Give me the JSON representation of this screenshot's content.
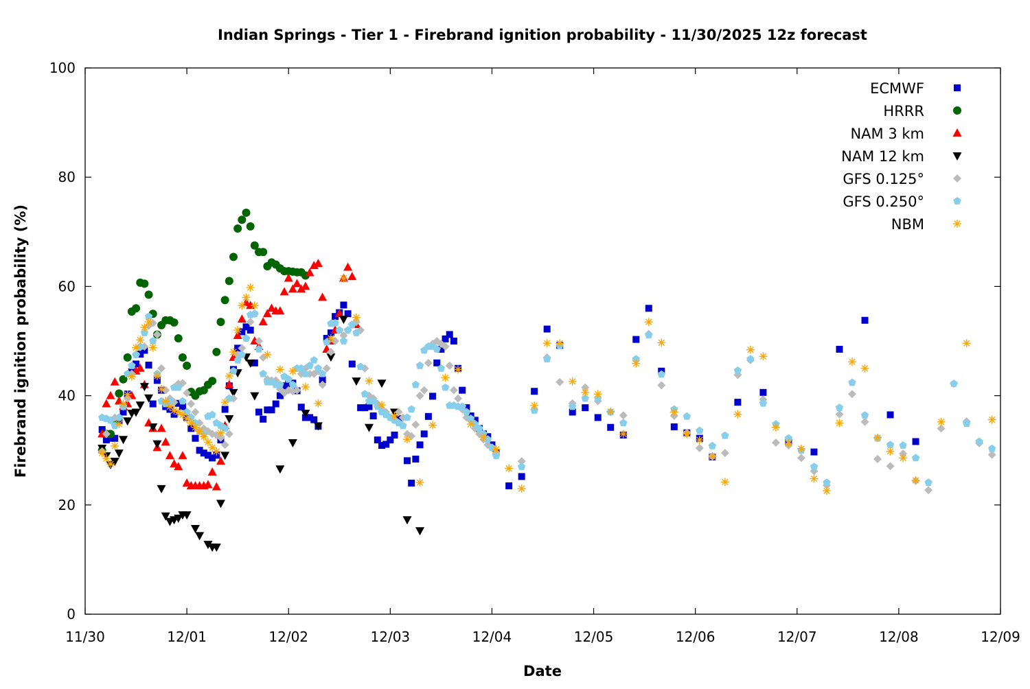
{
  "chart_data": {
    "type": "scatter",
    "title": "Indian Springs - Tier 1 - Firebrand ignition probability - 11/30/2025 12z forecast",
    "xlabel": "Date",
    "ylabel": "Firebrand ignition probability (%)",
    "x_units": "hours since 11/30 00:00",
    "xlim_hours": [
      0,
      216
    ],
    "ylim": [
      0,
      100
    ],
    "yticks": [
      0,
      20,
      40,
      60,
      80,
      100
    ],
    "xtick_labels": [
      "11/30",
      "12/01",
      "12/02",
      "12/03",
      "12/04",
      "12/05",
      "12/06",
      "12/07",
      "12/08",
      "12/09"
    ],
    "grid": false,
    "legend_position": "top-right",
    "series": [
      {
        "name": "ECMWF",
        "marker": "square",
        "color": "#0000cc",
        "segments": [
          {
            "start": 4,
            "step": 1,
            "values": [
              33.8,
              31.9,
              32.2,
              32.2,
              35.5,
              37,
              40.3,
              44.4,
              45.8,
              47.6,
              48.3,
              45.6,
              38.5,
              42.8,
              41,
              38,
              37.5,
              36.6,
              38.6,
              38,
              36,
              34,
              32.2,
              30,
              29.5,
              29.1,
              28.6,
              29.1,
              31.9,
              37.5,
              41.8,
              44.8,
              48.7,
              51.7,
              52.6,
              52,
              46,
              37,
              35.7,
              37.4,
              37.4,
              38.5,
              40,
              41.8,
              42.2,
              42.3,
              40.9,
              37.9,
              36,
              36,
              35.6,
              34.4,
              42.9,
              50.5,
              51.5,
              54.5,
              55.2,
              56.6,
              55,
              45.8,
              null,
              37.8,
              37.8,
              38,
              36.3,
              31.9,
              30.9,
              31.1,
              31.9,
              32.8,
              35.8,
              null,
              28.1,
              24,
              28.4,
              31,
              33,
              36.2,
              39.9,
              46,
              48.5,
              50.4,
              51.2,
              50,
              45,
              41,
              37.8,
              36.3,
              35.5,
              34,
              33,
              32.5,
              31,
              29.5
            ]
          },
          {
            "start": 100,
            "step": 3,
            "values": [
              23.5,
              25.2,
              40.8,
              52.2,
              49.2,
              37,
              37.8,
              36,
              34.2,
              32.8,
              50.3,
              56,
              44.5,
              34.3,
              33.2,
              32.2,
              28.8,
              null,
              38.8,
              null,
              40.6,
              null,
              31.5,
              null,
              29.7,
              null,
              48.5,
              null,
              53.8,
              null,
              36.5,
              null,
              31.6
            ]
          }
        ]
      },
      {
        "name": "HRRR",
        "marker": "circle",
        "color": "#006400",
        "segments": [
          {
            "start": 4,
            "step": 1,
            "values": [
              30,
              33,
              33,
              35.4,
              40.4,
              43,
              47,
              55.4,
              56,
              60.7,
              60.5,
              58.5,
              55,
              51.2,
              52.9,
              53.8,
              53.8,
              53.4,
              50.5,
              47,
              45.5,
              40.7,
              40,
              40.8,
              41,
              42,
              42.7,
              48,
              53.5,
              57.5,
              61,
              65.4,
              70.6,
              72.2,
              73.5,
              71,
              67.5,
              66.3,
              66.3,
              63.7,
              64.4,
              64,
              63.3,
              62.8,
              62.8,
              62.7,
              62.6,
              62.6,
              62
            ]
          }
        ]
      },
      {
        "name": "NAM 3 km",
        "marker": "triangle-up",
        "color": "#ff0000",
        "segments": [
          {
            "start": 4,
            "step": 1,
            "values": [
              33,
              38.5,
              40,
              42.5,
              39,
              38,
              38.5,
              40,
              44.5,
              45,
              42,
              35,
              34,
              30.5,
              34,
              31.5,
              29,
              27.5,
              27,
              29,
              24,
              23.5,
              23.5,
              23.5,
              23.5,
              23.7,
              26,
              23.3,
              28,
              34.5,
              42,
              47,
              51,
              54,
              57,
              56.5,
              50,
              49,
              53.5,
              55,
              56,
              55.5,
              55.5,
              59,
              61.5,
              59.5,
              60.5,
              59.5,
              60,
              62.5,
              63.8,
              64.2,
              58,
              48.5,
              50,
              52,
              55,
              61.5,
              63.5,
              61.8,
              53
            ]
          }
        ]
      },
      {
        "name": "NAM 12 km",
        "marker": "triangle-down",
        "color": "#000000",
        "points": [
          [
            4,
            30.4
          ],
          [
            5,
            29
          ],
          [
            6,
            27.4
          ],
          [
            7,
            28
          ],
          [
            8,
            29.5
          ],
          [
            9,
            32
          ],
          [
            10,
            35.4
          ],
          [
            11,
            36.8
          ],
          [
            12,
            37
          ],
          [
            13,
            38.3
          ],
          [
            14,
            41.7
          ],
          [
            15,
            39.6
          ],
          [
            16,
            34.3
          ],
          [
            17,
            31.2
          ],
          [
            18,
            23
          ],
          [
            19,
            18
          ],
          [
            20,
            17
          ],
          [
            21,
            17.3
          ],
          [
            22,
            17.6
          ],
          [
            23,
            18.2
          ],
          [
            24,
            18.2
          ],
          [
            26,
            15.7
          ],
          [
            27,
            14.4
          ],
          [
            29,
            12.8
          ],
          [
            30,
            12.3
          ],
          [
            31,
            12.3
          ],
          [
            32,
            20.3
          ],
          [
            33,
            29.1
          ],
          [
            34,
            35.8
          ],
          [
            35,
            40.6
          ],
          [
            36,
            44.2
          ],
          [
            38,
            47.1
          ],
          [
            39,
            46
          ],
          [
            40,
            40
          ],
          [
            46,
            26.6
          ],
          [
            49,
            31.4
          ],
          [
            52,
            36.8
          ],
          [
            55,
            34.5
          ],
          [
            58,
            47.1
          ],
          [
            61,
            54
          ],
          [
            64,
            42.7
          ],
          [
            67,
            34.2
          ],
          [
            70,
            42.3
          ],
          [
            73,
            37
          ],
          [
            76,
            17.3
          ],
          [
            79,
            15.3
          ]
        ]
      },
      {
        "name": "GFS 0.125°",
        "marker": "diamond",
        "color": "#bbbbbb",
        "segments": [
          {
            "start": 4,
            "step": 1,
            "values": [
              29.8,
              33,
              35.5,
              36,
              36,
              38,
              39.5,
              44,
              47.5,
              48.9,
              49,
              52.8,
              53.3,
              51.2,
              45,
              41,
              39.5,
              38.8,
              42.2,
              42.3,
              40.5,
              38.5,
              37,
              35,
              34,
              33.5,
              33,
              32.8,
              32.3,
              31,
              33,
              39.5,
              47.5,
              48.7,
              50.5,
              53.5,
              55,
              50,
              47,
              43,
              42.8,
              42.8,
              41.2,
              40.5,
              41,
              40.8,
              41,
              44,
              45,
              44,
              44,
              44.5,
              42,
              45,
              48,
              50,
              52,
              51,
              52,
              53,
              53.5,
              52,
              45,
              40,
              39.5,
              38.5,
              37.5,
              37,
              36,
              35.5,
              37,
              36,
              33,
              32.6,
              34.7,
              40,
              41,
              46,
              49.5,
              50,
              49.5,
              49,
              45.5,
              41,
              39.5,
              37.5,
              36,
              35.5,
              34,
              33,
              32,
              31,
              30.5,
              29.5
            ]
          },
          {
            "start": 103,
            "step": 3,
            "values": [
              28,
              37.5,
              47,
              42.5,
              38.6,
              41.5,
              39,
              37,
              36.4,
              46.5,
              51.3,
              41.9,
              36.3,
              33.2,
              30.4,
              28.9,
              29.5,
              43.8,
              46.5,
              39.3,
              31.4,
              30.9,
              28.6,
              26.2,
              23.6,
              36.6,
              40.3,
              35.2,
              28.4,
              27.1,
              29.4,
              24.4,
              22.7,
              34,
              42.2,
              35.3,
              31.3,
              29.2
            ]
          }
        ]
      },
      {
        "name": "GFS 0.250°",
        "marker": "pentagon",
        "color": "#87ceeb",
        "segments": [
          {
            "start": 4,
            "step": 1,
            "values": [
              36,
              35.8,
              35.5,
              34.5,
              36,
              38,
              44,
              45.5,
              47.5,
              49,
              51.5,
              54.5,
              50,
              44,
              39,
              38.5,
              39,
              41.5,
              41.5,
              39,
              37,
              36,
              35,
              33.5,
              33,
              36.2,
              36.5,
              35,
              34.5,
              34,
              39.5,
              44.5,
              46.5,
              47.5,
              50.5,
              54.8,
              55,
              48.5,
              44,
              42.5,
              42.5,
              42,
              42,
              43.5,
              43,
              42,
              45,
              45,
              44,
              45.5,
              46.5,
              45,
              44,
              49.8,
              53.2,
              53.3,
              52,
              50,
              52,
              53,
              51.5,
              45.3,
              40.3,
              39,
              39,
              38,
              37,
              36.5,
              36,
              35.5,
              35,
              34.5,
              36,
              37.5,
              42,
              45.5,
              48.3,
              49,
              49,
              48.5,
              45,
              41.5,
              38.2,
              38.2,
              38,
              38,
              37,
              35.8,
              34.8,
              34,
              33,
              32,
              30.5,
              29
            ]
          },
          {
            "start": 103,
            "step": 3,
            "values": [
              27,
              37.3,
              46.7,
              49.2,
              38,
              39.5,
              39.5,
              37,
              35,
              46.7,
              51.1,
              43.9,
              37.5,
              36.2,
              33.6,
              30.8,
              32.7,
              44.6,
              46.7,
              38.6,
              34.8,
              32.2,
              30,
              27,
              24.1,
              37.8,
              42.4,
              36.4,
              32.2,
              31,
              30.9,
              28.6,
              24.1,
              null,
              42.2,
              34.9,
              31.6,
              30.3
            ]
          }
        ]
      },
      {
        "name": "NBM",
        "marker": "asterisk",
        "color": "#ffa500",
        "segments": [
          {
            "start": 4,
            "step": 1,
            "values": [
              29.5,
              28.5,
              27.5,
              30.8,
              34.8,
              38.5,
              40.2,
              43.5,
              48.8,
              50.2,
              52.5,
              53.5,
              48.8,
              43.6,
              41.2,
              39,
              38,
              37.3,
              37,
              36.5,
              35.8,
              35,
              34.2,
              33.5,
              32.5,
              31.5,
              30.5,
              29.8,
              33.2,
              38.8,
              43.6,
              48,
              52,
              56.5,
              58,
              59.8,
              56.5
            ]
          },
          {
            "start": 43,
            "step": 3,
            "values": [
              47.5,
              44.8,
              44.5,
              41.6,
              38.6,
              50.5,
              61.5,
              54.3,
              42.7,
              38.3,
              36.3,
              32,
              24.1,
              34.6,
              43.3,
              44.8,
              34.8,
              32.4,
              30.2,
              26.7,
              23,
              38.2,
              49.6,
              49.6,
              42.6,
              40.6,
              40.3,
              37.1,
              33,
              45.9,
              53.5,
              49.7,
              37,
              33,
              31.9,
              28.9,
              24.2,
              36.6,
              48.4,
              47.2,
              34.2,
              31.3,
              30.3,
              24.8,
              22.6,
              35,
              46.2,
              45,
              32.3,
              29.8,
              28.6,
              24.5,
              null,
              35.2,
              null,
              49.6,
              null,
              35.6
            ]
          }
        ]
      }
    ]
  }
}
